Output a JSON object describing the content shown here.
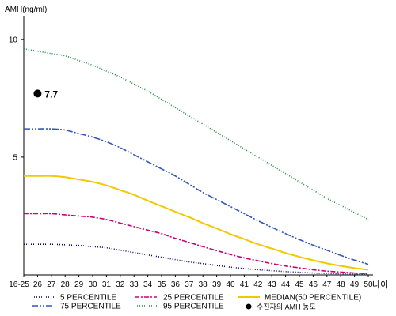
{
  "chart_data": {
    "type": "line",
    "ylabel": "AMH(ng/ml)",
    "xlabel": "나이",
    "ylim": [
      0,
      11
    ],
    "yticks": [
      5,
      10
    ],
    "categories": [
      "16-25",
      "26",
      "27",
      "28",
      "29",
      "30",
      "31",
      "32",
      "33",
      "34",
      "35",
      "36",
      "37",
      "38",
      "39",
      "40",
      "41",
      "42",
      "43",
      "44",
      "45",
      "46",
      "47",
      "48",
      "49",
      "50"
    ],
    "series": [
      {
        "name": "5 PERCENTILE",
        "color": "#000066",
        "dash": "1,2",
        "values": [
          1.3,
          1.3,
          1.3,
          1.28,
          1.25,
          1.2,
          1.15,
          1.05,
          0.95,
          0.85,
          0.75,
          0.65,
          0.55,
          0.48,
          0.4,
          0.33,
          0.27,
          0.22,
          0.18,
          0.14,
          0.11,
          0.08,
          0.06,
          0.05,
          0.04,
          0.03
        ]
      },
      {
        "name": "25 PERCENTILE",
        "color": "#cc0077",
        "dash": "6,2,2,2",
        "values": [
          2.6,
          2.6,
          2.6,
          2.55,
          2.5,
          2.45,
          2.35,
          2.2,
          2.05,
          1.9,
          1.75,
          1.55,
          1.38,
          1.2,
          1.03,
          0.87,
          0.72,
          0.6,
          0.48,
          0.38,
          0.3,
          0.22,
          0.16,
          0.12,
          0.08,
          0.05
        ]
      },
      {
        "name": "MEDIAN(50 PERCENTILE)",
        "color": "#f2c800",
        "dash": "",
        "values": [
          4.2,
          4.2,
          4.2,
          4.15,
          4.05,
          3.95,
          3.8,
          3.6,
          3.4,
          3.15,
          2.92,
          2.68,
          2.45,
          2.2,
          1.97,
          1.73,
          1.52,
          1.3,
          1.12,
          0.93,
          0.77,
          0.62,
          0.49,
          0.38,
          0.29,
          0.22
        ]
      },
      {
        "name": "75 PERCENTILE",
        "color": "#3355bb",
        "dash": "8,2,2,2,2,2",
        "values": [
          6.2,
          6.2,
          6.2,
          6.15,
          6.0,
          5.85,
          5.65,
          5.4,
          5.1,
          4.8,
          4.5,
          4.2,
          3.85,
          3.5,
          3.2,
          2.9,
          2.6,
          2.3,
          2.02,
          1.75,
          1.5,
          1.26,
          1.05,
          0.83,
          0.63,
          0.45
        ]
      },
      {
        "name": "95 PERCENTILE",
        "color": "#228844",
        "dash": "1,2",
        "values": [
          9.6,
          9.5,
          9.4,
          9.3,
          9.1,
          8.9,
          8.65,
          8.4,
          8.1,
          7.8,
          7.45,
          7.1,
          6.75,
          6.4,
          6.05,
          5.7,
          5.35,
          5.0,
          4.65,
          4.3,
          3.95,
          3.6,
          3.25,
          2.95,
          2.65,
          2.35
        ]
      }
    ],
    "annotation": {
      "label": "수진자의 AMH 농도",
      "category": "26",
      "value": 7.7,
      "value_label": "7.7",
      "color": "#000000"
    },
    "legend_position": "bottom"
  }
}
